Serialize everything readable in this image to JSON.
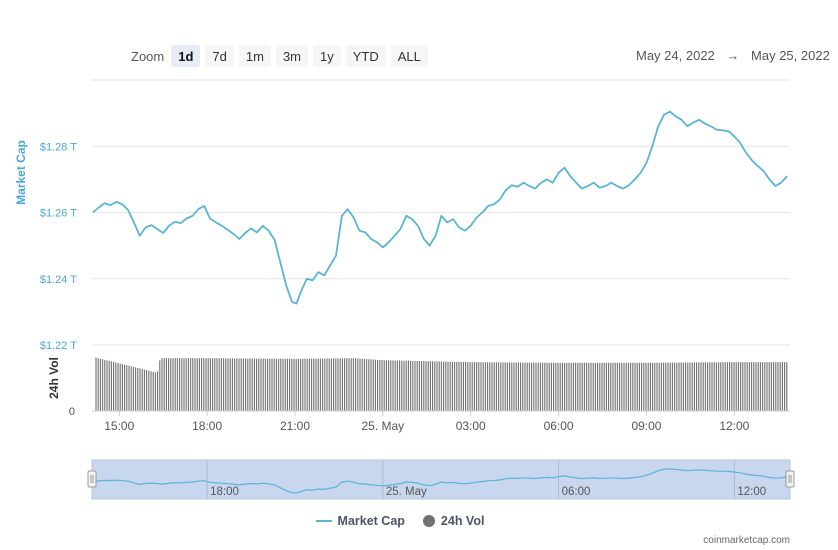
{
  "toolbar": {
    "zoom_label": "Zoom",
    "buttons": [
      "1d",
      "7d",
      "1m",
      "3m",
      "1y",
      "YTD",
      "ALL"
    ],
    "active": "1d"
  },
  "date_range": {
    "from": "May 24, 2022",
    "arrow": "→",
    "to": "May 25, 2022"
  },
  "colors": {
    "line": "#5ab4d8",
    "axis_label": "#4aa8d8",
    "volume": "#6e6e6e",
    "navigator_fill": "#c8d6ee"
  },
  "legend": {
    "market_cap": "Market Cap",
    "volume": "24h Vol"
  },
  "attribution": "coinmarketcap.com",
  "chart_data": {
    "type": "line",
    "ylabel": "Market Cap",
    "ylabel2": "24h Vol",
    "y_ticks": [
      "$1.28 T",
      "$1.26 T",
      "$1.24 T",
      "$1.22 T"
    ],
    "y_tick_values": [
      1.28,
      1.26,
      1.24,
      1.22
    ],
    "ylim": [
      1.22,
      1.3
    ],
    "vol_ticks": [
      "0"
    ],
    "x_ticks": [
      "15:00",
      "18:00",
      "21:00",
      "25. May",
      "03:00",
      "06:00",
      "09:00",
      "12:00"
    ],
    "x_tick_hours": [
      15,
      18,
      21,
      24,
      27,
      30,
      33,
      36
    ],
    "xlim_hours": [
      14.07,
      37.9
    ],
    "navigator_ticks": [
      "18:00",
      "25. May",
      "06:00",
      "12:00"
    ],
    "navigator_tick_hours": [
      18,
      24,
      30,
      36
    ],
    "series": [
      {
        "name": "Market Cap",
        "x_hours": [
          14.1,
          14.3,
          14.5,
          14.7,
          14.9,
          15.1,
          15.3,
          15.5,
          15.7,
          15.9,
          16.1,
          16.3,
          16.5,
          16.7,
          16.9,
          17.1,
          17.3,
          17.5,
          17.7,
          17.9,
          18.1,
          18.3,
          18.5,
          18.7,
          18.9,
          19.1,
          19.3,
          19.5,
          19.7,
          19.9,
          20.1,
          20.3,
          20.5,
          20.7,
          20.9,
          21.05,
          21.2,
          21.4,
          21.6,
          21.8,
          22.0,
          22.2,
          22.4,
          22.6,
          22.8,
          23.0,
          23.2,
          23.4,
          23.6,
          23.8,
          24.0,
          24.2,
          24.4,
          24.6,
          24.8,
          25.0,
          25.2,
          25.4,
          25.6,
          25.8,
          26.0,
          26.2,
          26.4,
          26.6,
          26.8,
          27.0,
          27.2,
          27.4,
          27.6,
          27.8,
          28.0,
          28.2,
          28.4,
          28.6,
          28.8,
          29.0,
          29.2,
          29.4,
          29.6,
          29.8,
          30.0,
          30.2,
          30.4,
          30.6,
          30.8,
          31.0,
          31.2,
          31.4,
          31.6,
          31.8,
          32.0,
          32.2,
          32.4,
          32.6,
          32.8,
          33.0,
          33.2,
          33.4,
          33.6,
          33.8,
          34.0,
          34.2,
          34.4,
          34.6,
          34.8,
          35.0,
          35.2,
          35.4,
          35.6,
          35.8,
          36.0,
          36.2,
          36.4,
          36.6,
          36.8,
          37.0,
          37.2,
          37.4,
          37.6,
          37.8
        ],
        "values": [
          1.26,
          1.2615,
          1.2628,
          1.2622,
          1.2632,
          1.2625,
          1.2608,
          1.257,
          1.253,
          1.2555,
          1.2562,
          1.255,
          1.2538,
          1.256,
          1.2572,
          1.2568,
          1.2582,
          1.259,
          1.261,
          1.262,
          1.2582,
          1.257,
          1.256,
          1.2548,
          1.2535,
          1.252,
          1.2538,
          1.2552,
          1.254,
          1.256,
          1.2545,
          1.2518,
          1.245,
          1.238,
          1.233,
          1.2325,
          1.236,
          1.24,
          1.2395,
          1.242,
          1.241,
          1.244,
          1.247,
          1.259,
          1.261,
          1.2585,
          1.2545,
          1.254,
          1.252,
          1.251,
          1.2495,
          1.251,
          1.253,
          1.255,
          1.259,
          1.258,
          1.256,
          1.252,
          1.25,
          1.253,
          1.259,
          1.257,
          1.258,
          1.2555,
          1.2545,
          1.256,
          1.2585,
          1.26,
          1.262,
          1.2625,
          1.264,
          1.2668,
          1.2682,
          1.2678,
          1.269,
          1.268,
          1.2672,
          1.269,
          1.27,
          1.269,
          1.272,
          1.2735,
          1.271,
          1.269,
          1.2672,
          1.268,
          1.269,
          1.2675,
          1.268,
          1.269,
          1.268,
          1.2672,
          1.2682,
          1.27,
          1.272,
          1.275,
          1.28,
          1.286,
          1.2895,
          1.2905,
          1.289,
          1.288,
          1.286,
          1.2872,
          1.288,
          1.2868,
          1.286,
          1.285,
          1.2848,
          1.2845,
          1.283,
          1.281,
          1.278,
          1.2758,
          1.274,
          1.2725,
          1.27,
          1.268,
          1.269,
          1.271
        ]
      },
      {
        "name": "24h Vol",
        "x_hours": [
          14.1,
          16.3,
          16.4,
          18.0,
          21.0,
          23.0,
          24.0,
          27.0,
          30.0,
          33.0,
          36.0,
          37.8
        ],
        "values": [
          0.82,
          0.58,
          0.8,
          0.8,
          0.79,
          0.8,
          0.77,
          0.74,
          0.73,
          0.73,
          0.74,
          0.74
        ]
      }
    ]
  }
}
